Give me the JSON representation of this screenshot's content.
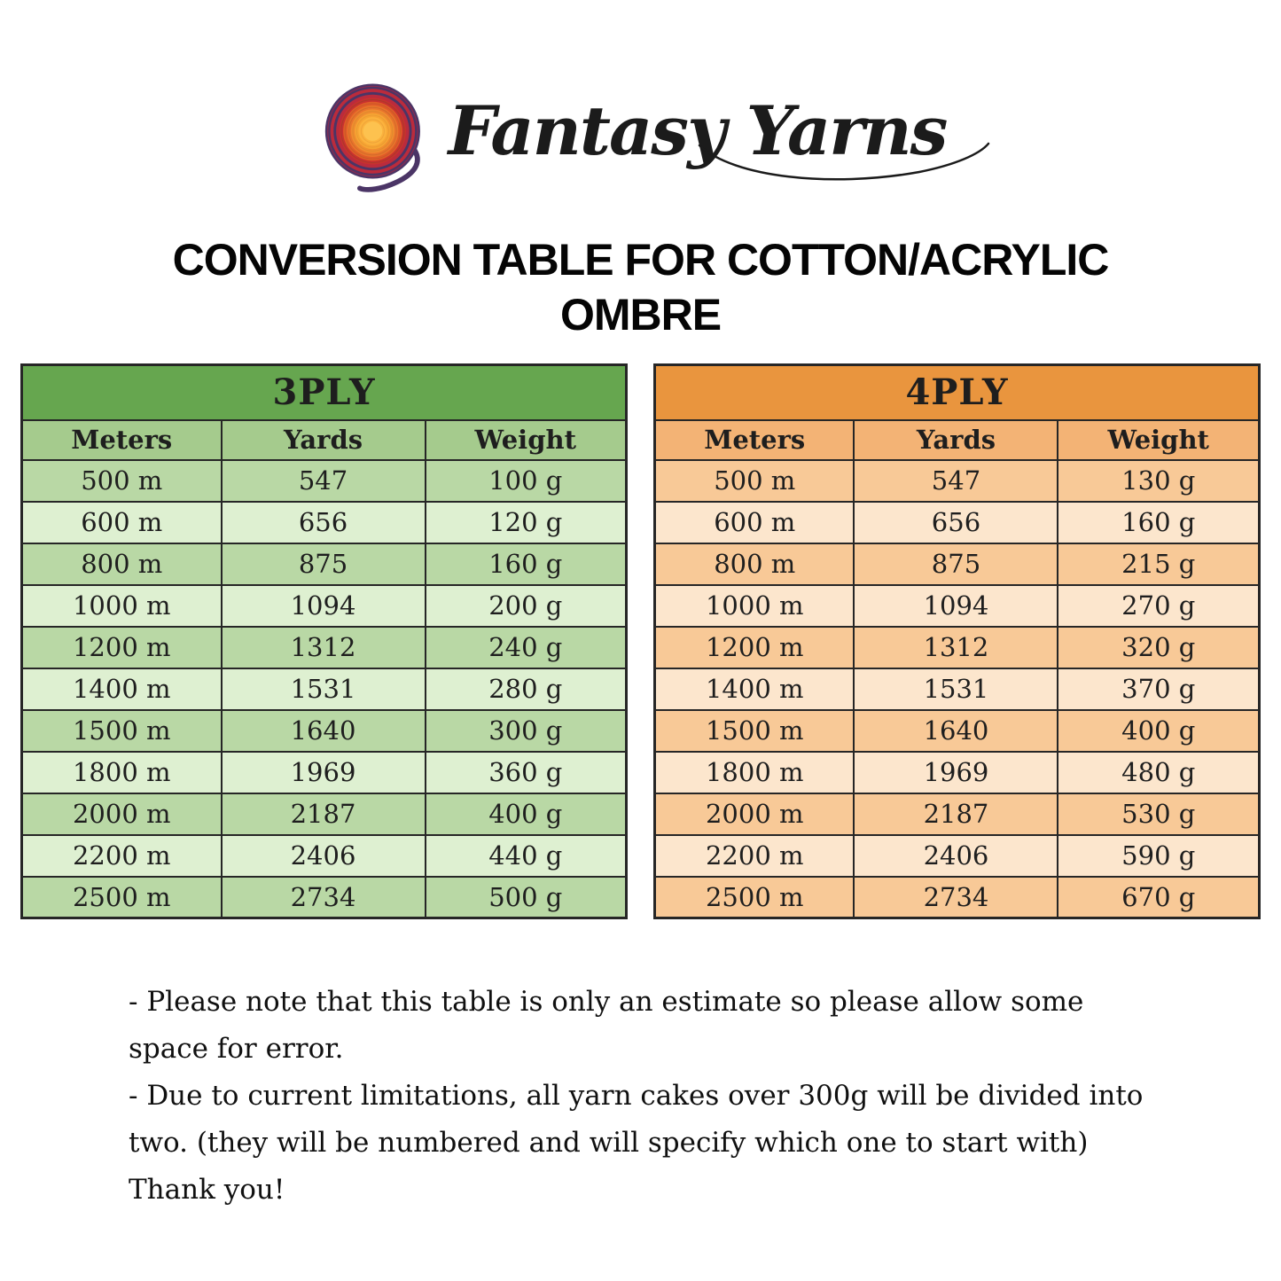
{
  "logo": {
    "brand": "Fantasy Yarns",
    "icon": "yarn-ball-icon",
    "icon_colors": {
      "outer_purple": "#4b3566",
      "ring_red": "#bb2b3c",
      "mid_red": "#c8312f",
      "orange": "#e8742c",
      "light_orange": "#f6a433",
      "center_yellow": "#fdc24f"
    }
  },
  "title_lines": [
    "CONVERSION TABLE FOR COTTON/ACRYLIC",
    "OMBRE"
  ],
  "tables": [
    {
      "name": "3PLY",
      "columns": [
        "Meters",
        "Yards",
        "Weight"
      ],
      "rows": [
        [
          "500 m",
          "547",
          "100 g"
        ],
        [
          "600 m",
          "656",
          "120 g"
        ],
        [
          "800 m",
          "875",
          "160 g"
        ],
        [
          "1000 m",
          "1094",
          "200 g"
        ],
        [
          "1200 m",
          "1312",
          "240 g"
        ],
        [
          "1400 m",
          "1531",
          "280 g"
        ],
        [
          "1500 m",
          "1640",
          "300 g"
        ],
        [
          "1800 m",
          "1969",
          "360 g"
        ],
        [
          "2000 m",
          "2187",
          "400 g"
        ],
        [
          "2200 m",
          "2406",
          "440 g"
        ],
        [
          "2500 m",
          "2734",
          "500 g"
        ]
      ],
      "theme": {
        "header_bg": "#66a64f",
        "subheader_bg": "#a5cb8d",
        "row_dark": "#b9d8a5",
        "row_light": "#def0d1"
      }
    },
    {
      "name": "4PLY",
      "columns": [
        "Meters",
        "Yards",
        "Weight"
      ],
      "rows": [
        [
          "500 m",
          "547",
          "130 g"
        ],
        [
          "600 m",
          "656",
          "160 g"
        ],
        [
          "800 m",
          "875",
          "215 g"
        ],
        [
          "1000 m",
          "1094",
          "270 g"
        ],
        [
          "1200 m",
          "1312",
          "320 g"
        ],
        [
          "1400 m",
          "1531",
          "370 g"
        ],
        [
          "1500 m",
          "1640",
          "400 g"
        ],
        [
          "1800 m",
          "1969",
          "480 g"
        ],
        [
          "2000 m",
          "2187",
          "530 g"
        ],
        [
          "2200 m",
          "2406",
          "590 g"
        ],
        [
          "2500 m",
          "2734",
          "670 g"
        ]
      ],
      "theme": {
        "header_bg": "#e9953e",
        "subheader_bg": "#f3b375",
        "row_dark": "#f8c997",
        "row_light": "#fce6cd"
      }
    }
  ],
  "notes_lines": [
    "- Please note that this table is only an estimate so please allow some",
    "space for error.",
    "- Due to current limitations, all yarn cakes over 300g will be divided into",
    "two. (they will be numbered and will specify which one to start with)",
    "Thank you!"
  ],
  "colors": {
    "page_bg": "#ffffff",
    "border": "#262626",
    "text": "#1e1e1e"
  }
}
